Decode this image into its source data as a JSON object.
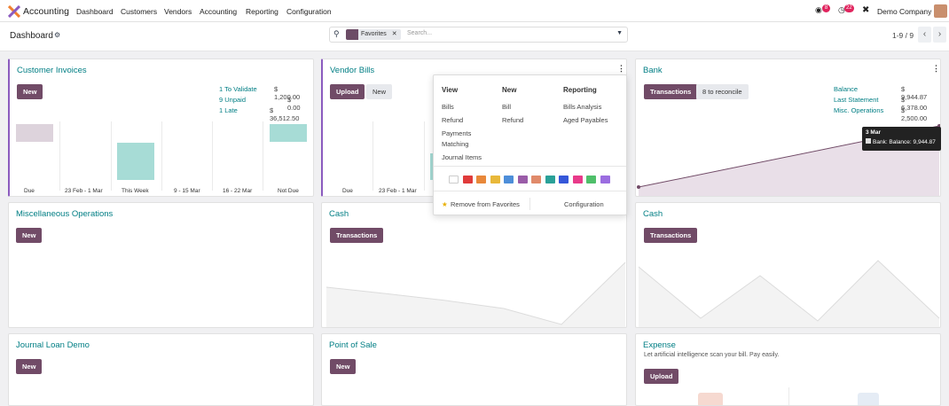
{
  "nav": {
    "app": "Accounting",
    "menus": [
      "Dashboard",
      "Customers",
      "Vendors",
      "Accounting",
      "Reporting",
      "Configuration"
    ],
    "msg_count": "8",
    "activity_count": "22",
    "company": "Demo Company"
  },
  "control": {
    "breadcrumb": "Dashboard",
    "facet": "Favorites",
    "search_placeholder": "Search...",
    "pager": "1-9 / 9"
  },
  "cards": {
    "customer_invoices": {
      "title": "Customer Invoices",
      "new": "New",
      "stats": [
        {
          "k": "1 To Validate",
          "v": "$ 1,200.00"
        },
        {
          "k": "9 Unpaid",
          "v": "$ 0.00"
        },
        {
          "k": "1 Late",
          "v": "$ 36,512.50"
        }
      ],
      "xlabels": [
        "Due",
        "23 Feb - 1 Mar",
        "This Week",
        "9 - 15 Mar",
        "16 - 22 Mar",
        "Not Due"
      ]
    },
    "vendor_bills": {
      "title": "Vendor Bills",
      "upload": "Upload",
      "new": "New",
      "xlabels": [
        "Due",
        "23 Feb - 1 Mar"
      ]
    },
    "bank": {
      "title": "Bank",
      "transactions": "Transactions",
      "reconcile": "8 to reconcile",
      "stats": [
        {
          "k": "Balance",
          "v": "$ 9,944.87"
        },
        {
          "k": "Last Statement",
          "v": "$ 6,378.00"
        },
        {
          "k": "Misc. Operations",
          "v": "$ 2,500.00"
        }
      ],
      "tooltip_date": "3 Mar",
      "tooltip_text": "Bank: Balance: 9,944.87"
    },
    "misc": {
      "title": "Miscellaneous Operations",
      "new": "New"
    },
    "cash1": {
      "title": "Cash",
      "transactions": "Transactions"
    },
    "cash2": {
      "title": "Cash",
      "transactions": "Transactions"
    },
    "loan": {
      "title": "Journal Loan Demo",
      "new": "New"
    },
    "pos": {
      "title": "Point of Sale",
      "new": "New"
    },
    "expense": {
      "title": "Expense",
      "subtitle": "Let artificial intelligence scan your bill. Pay easily.",
      "upload": "Upload"
    }
  },
  "dropdown": {
    "view": "View",
    "new": "New",
    "reporting": "Reporting",
    "view_items": [
      "Bills",
      "Refund",
      "Payments",
      "Matching",
      "Journal Items"
    ],
    "new_items": [
      "Bill",
      "Refund"
    ],
    "reporting_items": [
      "Bills Analysis",
      "Aged Payables"
    ],
    "remove": "Remove from Favorites",
    "configuration": "Configuration",
    "colors": [
      "#ffffff",
      "#e03b3b",
      "#e8883a",
      "#e8b83a",
      "#4d8ed9",
      "#9a5ca8",
      "#e08a6a",
      "#2aa198",
      "#3557d9",
      "#e83a8a",
      "#4fbf6a",
      "#9b6de0"
    ]
  },
  "chart_data": {
    "type": "line",
    "series": [
      {
        "values": []
      }
    ]
  }
}
